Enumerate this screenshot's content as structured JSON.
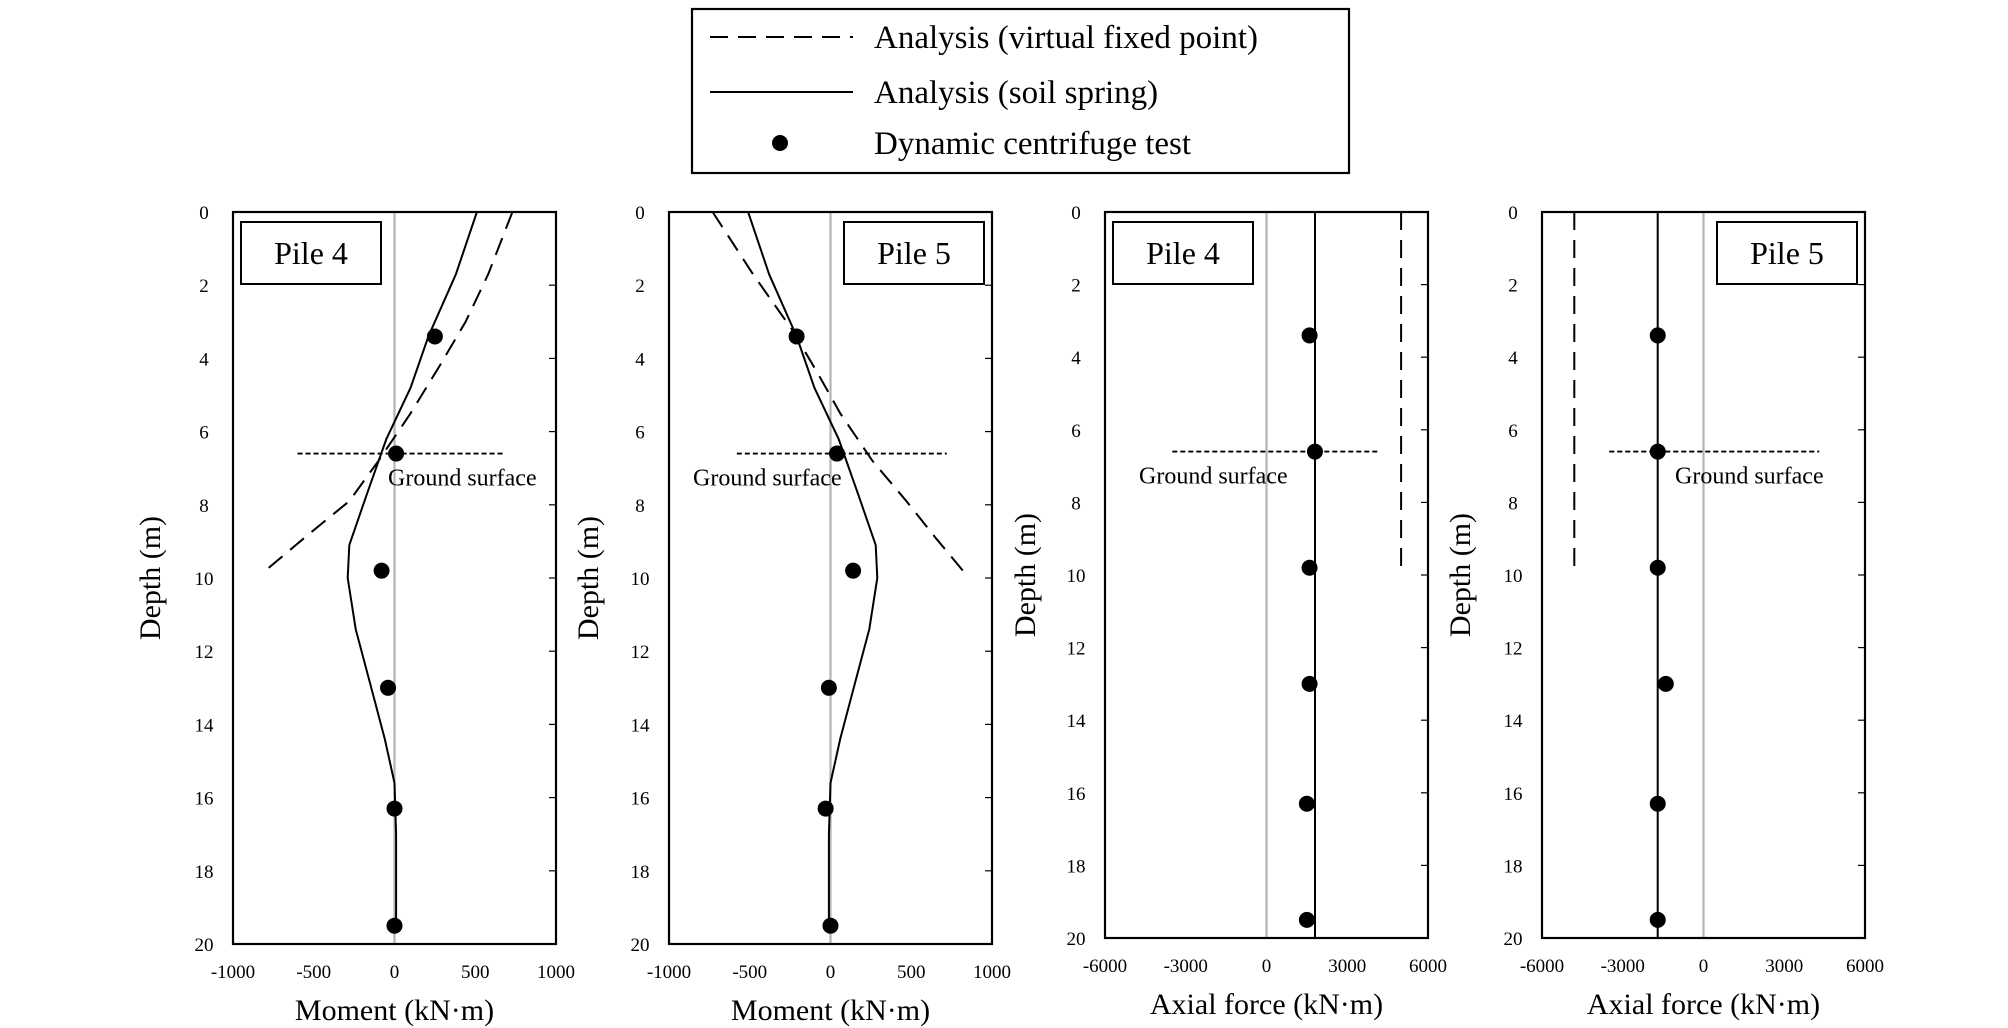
{
  "legend": {
    "items": [
      {
        "label": "Analysis (virtual fixed point)",
        "style": "dashed"
      },
      {
        "label": "Analysis (soil spring)",
        "style": "solid"
      },
      {
        "label": "Dynamic centrifuge test",
        "style": "marker"
      }
    ]
  },
  "chart_data": [
    {
      "type": "line",
      "label": "Pile 4",
      "xlabel": "Moment (kN·m)",
      "ylabel": "Depth (m)",
      "xlim": [
        -1000,
        1000
      ],
      "ylim": [
        0,
        20
      ],
      "xticks": [
        -1000,
        -500,
        0,
        500,
        1000
      ],
      "yticks": [
        0,
        2,
        4,
        6,
        8,
        10,
        12,
        14,
        16,
        18,
        20
      ],
      "ground_surface": {
        "label": "Ground surface",
        "depth": 6.6,
        "x_range": [
          -600,
          670
        ]
      },
      "series": [
        {
          "name": "Analysis (virtual fixed point)",
          "style": "dashed",
          "points": [
            [
              730,
              0
            ],
            [
              580,
              1.7
            ],
            [
              440,
              3.0
            ],
            [
              280,
              4.2
            ],
            [
              100,
              5.5
            ],
            [
              -100,
              6.8
            ],
            [
              -280,
              7.9
            ],
            [
              -530,
              8.8
            ],
            [
              -800,
              9.8
            ]
          ]
        },
        {
          "name": "Analysis (soil spring)",
          "style": "solid",
          "points": [
            [
              510,
              0
            ],
            [
              380,
              1.7
            ],
            [
              210,
              3.4
            ],
            [
              100,
              4.8
            ],
            [
              -50,
              6.2
            ],
            [
              -170,
              7.7
            ],
            [
              -280,
              9.1
            ],
            [
              -290,
              10.0
            ],
            [
              -240,
              11.4
            ],
            [
              -150,
              12.9
            ],
            [
              -60,
              14.4
            ],
            [
              0,
              15.6
            ],
            [
              10,
              17.0
            ],
            [
              10,
              19.5
            ]
          ]
        },
        {
          "name": "Dynamic centrifuge test",
          "style": "marker",
          "points": [
            [
              250,
              3.4
            ],
            [
              10,
              6.6
            ],
            [
              -80,
              9.8
            ],
            [
              -40,
              13.0
            ],
            [
              0,
              16.3
            ],
            [
              0,
              19.5
            ]
          ]
        }
      ]
    },
    {
      "type": "line",
      "label": "Pile 5",
      "xlabel": "Moment (kN·m)",
      "ylabel": "Depth (m)",
      "xlim": [
        -1000,
        1000
      ],
      "ylim": [
        0,
        20
      ],
      "xticks": [
        -1000,
        -500,
        0,
        500,
        1000
      ],
      "yticks": [
        0,
        2,
        4,
        6,
        8,
        10,
        12,
        14,
        16,
        18,
        20
      ],
      "ground_surface": {
        "label": "Ground surface",
        "depth": 6.6,
        "x_range": [
          -580,
          720
        ]
      },
      "series": [
        {
          "name": "Analysis (virtual fixed point)",
          "style": "dashed",
          "points": [
            [
              -730,
              0
            ],
            [
              -480,
              1.7
            ],
            [
              -240,
              3.2
            ],
            [
              -80,
              4.4
            ],
            [
              60,
              5.5
            ],
            [
              260,
              6.8
            ],
            [
              470,
              7.9
            ],
            [
              650,
              8.9
            ],
            [
              820,
              9.8
            ]
          ]
        },
        {
          "name": "Analysis (soil spring)",
          "style": "solid",
          "points": [
            [
              -510,
              0
            ],
            [
              -380,
              1.7
            ],
            [
              -210,
              3.4
            ],
            [
              -100,
              4.8
            ],
            [
              50,
              6.2
            ],
            [
              170,
              7.7
            ],
            [
              280,
              9.1
            ],
            [
              290,
              10.0
            ],
            [
              240,
              11.4
            ],
            [
              150,
              12.9
            ],
            [
              60,
              14.4
            ],
            [
              0,
              15.6
            ],
            [
              -10,
              17.0
            ],
            [
              -10,
              19.5
            ]
          ]
        },
        {
          "name": "Dynamic centrifuge test",
          "style": "marker",
          "points": [
            [
              -210,
              3.4
            ],
            [
              40,
              6.6
            ],
            [
              140,
              9.8
            ],
            [
              -10,
              13.0
            ],
            [
              -30,
              16.3
            ],
            [
              0,
              19.5
            ]
          ]
        }
      ]
    },
    {
      "type": "line",
      "label": "Pile 4",
      "xlabel": "Axial force (kN·m)",
      "ylabel": "Depth (m)",
      "xlim": [
        -6000,
        6000
      ],
      "ylim": [
        0,
        20
      ],
      "xticks": [
        -6000,
        -3000,
        0,
        3000,
        6000
      ],
      "yticks": [
        0,
        2,
        4,
        6,
        8,
        10,
        12,
        14,
        16,
        18,
        20
      ],
      "ground_surface": {
        "label": "Ground surface",
        "depth": 6.6,
        "x_range": [
          -3500,
          4200
        ]
      },
      "series": [
        {
          "name": "Analysis (virtual fixed point)",
          "style": "dashed",
          "points": [
            [
              5000,
              0
            ],
            [
              5000,
              9.8
            ]
          ]
        },
        {
          "name": "Analysis (soil spring)",
          "style": "solid",
          "points": [
            [
              1800,
              0
            ],
            [
              1800,
              20
            ]
          ]
        },
        {
          "name": "Dynamic centrifuge test",
          "style": "marker",
          "points": [
            [
              1600,
              3.4
            ],
            [
              1800,
              6.6
            ],
            [
              1600,
              9.8
            ],
            [
              1600,
              13.0
            ],
            [
              1500,
              16.3
            ],
            [
              1500,
              19.5
            ]
          ]
        }
      ]
    },
    {
      "type": "line",
      "label": "Pile 5",
      "xlabel": "Axial force (kN·m)",
      "ylabel": "Depth (m)",
      "xlim": [
        -6000,
        6000
      ],
      "ylim": [
        0,
        20
      ],
      "xticks": [
        -6000,
        -3000,
        0,
        3000,
        6000
      ],
      "yticks": [
        0,
        2,
        4,
        6,
        8,
        10,
        12,
        14,
        16,
        18,
        20
      ],
      "ground_surface": {
        "label": "Ground surface",
        "depth": 6.6,
        "x_range": [
          -3500,
          4300
        ]
      },
      "series": [
        {
          "name": "Analysis (virtual fixed point)",
          "style": "dashed",
          "points": [
            [
              -4800,
              0
            ],
            [
              -4800,
              9.8
            ]
          ]
        },
        {
          "name": "Analysis (soil spring)",
          "style": "solid",
          "points": [
            [
              -1700,
              0
            ],
            [
              -1700,
              20
            ]
          ]
        },
        {
          "name": "Dynamic centrifuge test",
          "style": "marker",
          "points": [
            [
              -1700,
              3.4
            ],
            [
              -1700,
              6.6
            ],
            [
              -1700,
              9.8
            ],
            [
              -1400,
              13.0
            ],
            [
              -1700,
              16.3
            ],
            [
              -1700,
              19.5
            ]
          ]
        }
      ]
    }
  ]
}
